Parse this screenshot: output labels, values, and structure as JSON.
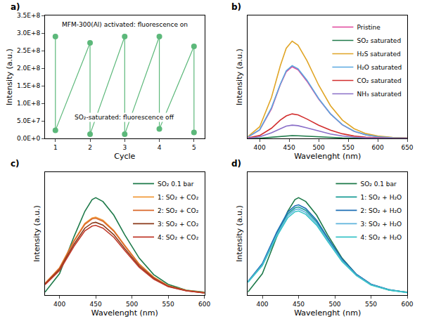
{
  "chart_data": [
    {
      "panel": "a)",
      "type": "line",
      "marker": "circle",
      "grid": false,
      "x_label": "Cycle",
      "y_label": "Intensity (a.u.)",
      "xlim": [
        0.7,
        5.3
      ],
      "xticks": [
        1,
        2,
        3,
        4,
        5
      ],
      "ylim": [
        0,
        350000000
      ],
      "yticks": [
        {
          "value": 0,
          "label": "0.0E+0"
        },
        {
          "value": 50000000,
          "label": "5.0E+7"
        },
        {
          "value": 100000000,
          "label": "1.0E+8"
        },
        {
          "value": 150000000,
          "label": "1.5E+8"
        },
        {
          "value": 200000000,
          "label": "2.0E+8"
        },
        {
          "value": 250000000,
          "label": "2.5E+8"
        },
        {
          "value": 300000000,
          "label": "3.0E+8"
        },
        {
          "value": 350000000,
          "label": "3.5E+8"
        }
      ],
      "x": [
        1,
        1,
        2,
        2,
        3,
        3,
        4,
        4,
        5,
        5
      ],
      "series": [
        {
          "color": "#5cb87a",
          "values": [
            290000000,
            23000000,
            272000000,
            12000000,
            290000000,
            12000000,
            290000000,
            27000000,
            262000000,
            17000000
          ]
        }
      ],
      "annotations": [
        {
          "text": "MFM-300(Al) activated: fluorescence on",
          "x": 3,
          "y": 325000000
        },
        {
          "text": "SO₂-saturated: fluorescence off",
          "x": 3,
          "y": 60000000
        }
      ]
    },
    {
      "panel": "b)",
      "type": "line",
      "grid": false,
      "tick_labels": "x",
      "legend": "upper right",
      "x_label": "Wavelenght (nm)",
      "y_label": "Intensity (a.u.)",
      "xlim": [
        380,
        650
      ],
      "xticks": [
        400,
        450,
        500,
        550,
        600,
        650
      ],
      "ylim": [
        0,
        1.2
      ],
      "x": [
        380,
        400,
        420,
        435,
        445,
        455,
        465,
        480,
        500,
        520,
        540,
        560,
        580,
        600,
        625,
        650
      ],
      "series": [
        {
          "name": "Pristine",
          "color": "#e0449a",
          "values": [
            0.014,
            0.084,
            0.29,
            0.525,
            0.65,
            0.7,
            0.67,
            0.56,
            0.385,
            0.24,
            0.133,
            0.07,
            0.035,
            0.018,
            0.007,
            0.004
          ]
        },
        {
          "name": "SO₂ saturated",
          "color": "#1e7a4a",
          "values": [
            0.001,
            0.003,
            0.012,
            0.021,
            0.026,
            0.028,
            0.027,
            0.022,
            0.015,
            0.01,
            0.005,
            0.003,
            0.001,
            0.001,
            0,
            0
          ]
        },
        {
          "name": "H₂S saturated",
          "color": "#e0a526",
          "values": [
            0.019,
            0.114,
            0.4,
            0.71,
            0.88,
            0.95,
            0.91,
            0.76,
            0.52,
            0.32,
            0.18,
            0.095,
            0.048,
            0.024,
            0.01,
            0.005
          ]
        },
        {
          "name": "H₂O saturated",
          "color": "#5aa8e0",
          "values": [
            0.014,
            0.085,
            0.3,
            0.53,
            0.66,
            0.71,
            0.68,
            0.57,
            0.39,
            0.24,
            0.135,
            0.071,
            0.036,
            0.018,
            0.007,
            0.004
          ]
        },
        {
          "name": "CO₂ saturated",
          "color": "#d22e2e",
          "values": [
            0.005,
            0.029,
            0.1,
            0.18,
            0.22,
            0.24,
            0.23,
            0.19,
            0.13,
            0.082,
            0.046,
            0.024,
            0.012,
            0.006,
            0.002,
            0.001
          ]
        },
        {
          "name": "NH₃ saturated",
          "color": "#8a6fc8",
          "values": [
            0.003,
            0.016,
            0.055,
            0.098,
            0.121,
            0.13,
            0.125,
            0.104,
            0.072,
            0.044,
            0.025,
            0.013,
            0.007,
            0.003,
            0.001,
            0.001
          ]
        }
      ]
    },
    {
      "panel": "c)",
      "type": "line",
      "grid": false,
      "tick_labels": "x",
      "legend": "upper right",
      "x_label": "Wavelenght (nm)",
      "y_label": "Intensity (a.u.)",
      "xlim": [
        380,
        600
      ],
      "xticks": [
        400,
        450,
        500,
        550,
        600
      ],
      "ylim": [
        0,
        1.2
      ],
      "x": [
        380,
        400,
        420,
        435,
        445,
        450,
        460,
        475,
        490,
        510,
        530,
        550,
        575,
        600
      ],
      "series": [
        {
          "name": "SO₂ 0.1 bar",
          "color": "#1e7a4a",
          "values": [
            0.029,
            0.209,
            0.57,
            0.817,
            0.931,
            0.95,
            0.912,
            0.779,
            0.589,
            0.361,
            0.2,
            0.105,
            0.048,
            0.029
          ]
        },
        {
          "name": "1: SO₂ + CO₂",
          "color": "#f29a3a",
          "values": [
            0.114,
            0.266,
            0.532,
            0.7,
            0.752,
            0.76,
            0.73,
            0.63,
            0.486,
            0.304,
            0.175,
            0.091,
            0.046,
            0.023
          ]
        },
        {
          "name": "2: SO₂ + CO₂",
          "color": "#d9682a",
          "values": [
            0.113,
            0.263,
            0.525,
            0.69,
            0.743,
            0.75,
            0.72,
            0.623,
            0.48,
            0.3,
            0.173,
            0.09,
            0.045,
            0.023
          ]
        },
        {
          "name": "3: SO₂ + CO₂",
          "color": "#8b3a1a",
          "values": [
            0.107,
            0.249,
            0.497,
            0.653,
            0.703,
            0.71,
            0.682,
            0.589,
            0.454,
            0.284,
            0.163,
            0.085,
            0.043,
            0.021
          ]
        },
        {
          "name": "4: SO₂ + CO₂",
          "color": "#c0392b",
          "values": [
            0.102,
            0.238,
            0.476,
            0.626,
            0.673,
            0.68,
            0.653,
            0.564,
            0.435,
            0.272,
            0.156,
            0.082,
            0.041,
            0.02
          ]
        }
      ]
    },
    {
      "panel": "d)",
      "type": "line",
      "grid": false,
      "tick_labels": "x",
      "legend": "upper right",
      "x_label": "Wavelenght (nm)",
      "y_label": "Intensity (a.u.)",
      "xlim": [
        380,
        600
      ],
      "xticks": [
        400,
        450,
        500,
        550,
        600
      ],
      "ylim": [
        0,
        1.2
      ],
      "x": [
        380,
        400,
        420,
        435,
        445,
        450,
        460,
        475,
        490,
        510,
        530,
        550,
        575,
        600
      ],
      "series": [
        {
          "name": "SO₂ 0.1 bar",
          "color": "#1e7a4a",
          "values": [
            0.029,
            0.209,
            0.57,
            0.817,
            0.931,
            0.95,
            0.912,
            0.779,
            0.589,
            0.361,
            0.2,
            0.105,
            0.048,
            0.029
          ]
        },
        {
          "name": "1: SO₂ + H₂O",
          "color": "#1a9c96",
          "values": [
            0.129,
            0.301,
            0.602,
            0.791,
            0.851,
            0.86,
            0.826,
            0.714,
            0.55,
            0.344,
            0.198,
            0.103,
            0.052,
            0.026
          ]
        },
        {
          "name": "2: SO₂ + H₂O",
          "color": "#1f6fb5",
          "values": [
            0.132,
            0.308,
            0.616,
            0.81,
            0.871,
            0.88,
            0.845,
            0.73,
            0.563,
            0.352,
            0.202,
            0.106,
            0.053,
            0.026
          ]
        },
        {
          "name": "3: SO₂ + H₂O",
          "color": "#5fb4dc",
          "values": [
            0.126,
            0.294,
            0.588,
            0.773,
            0.832,
            0.84,
            0.806,
            0.697,
            0.538,
            0.336,
            0.193,
            0.101,
            0.05,
            0.025
          ]
        },
        {
          "name": "4: SO₂ + H₂O",
          "color": "#3ac4c8",
          "values": [
            0.123,
            0.287,
            0.574,
            0.754,
            0.812,
            0.82,
            0.787,
            0.681,
            0.525,
            0.328,
            0.189,
            0.098,
            0.049,
            0.025
          ]
        }
      ]
    }
  ]
}
